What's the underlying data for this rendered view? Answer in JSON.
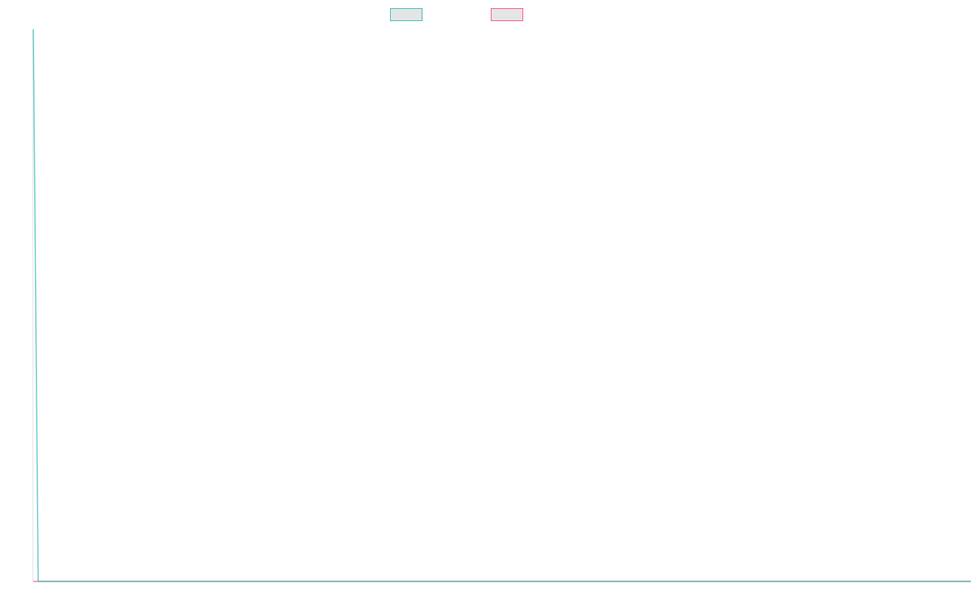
{
  "chart_data": {
    "type": "line",
    "title": "",
    "xlabel": "",
    "ylabel": "",
    "x_count": 193,
    "ylim": [
      0,
      1
    ],
    "grid": false,
    "legend_position": "top",
    "series": [
      {
        "color": "#4bc0c0",
        "values_note_free": true,
        "first_value": 1,
        "rest_value": 0
      },
      {
        "color": "#ff6384",
        "first_value": 0,
        "rest_value": 0
      }
    ]
  }
}
